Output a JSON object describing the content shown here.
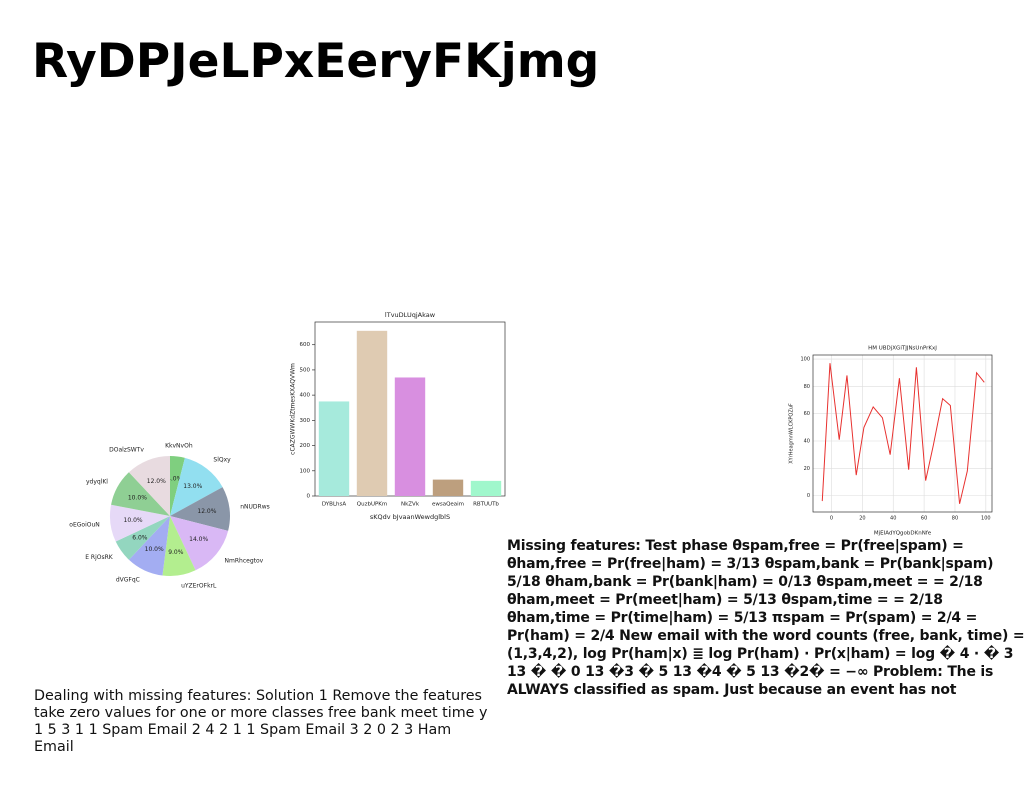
{
  "title": "RyDPJeLPxEeryFKjmg",
  "chart_data": [
    {
      "type": "pie",
      "categories": [
        "KkvNvOh",
        "SlQxy",
        "nNUDRws",
        "NmRhcegtov",
        "uYZErOFkrL",
        "dVGFqC",
        "E RjOsRK",
        "oEGoiOuN",
        "ydyqlKl",
        "DOalzSWTv"
      ],
      "values": [
        4,
        13,
        12,
        14,
        9,
        10,
        6,
        10,
        10,
        12
      ],
      "value_labels": [
        "4.0%",
        "13.0%",
        "12.0%",
        "14.0%",
        "9.0%",
        "10.0%",
        "6.0%",
        "10.0%",
        "10.0%",
        "12.0%"
      ],
      "colors": [
        "#7fcf7f",
        "#92dff0",
        "#8a96a8",
        "#d9b8f5",
        "#b3ee8f",
        "#a3adf2",
        "#93d6bf",
        "#e6d9f7",
        "#8fcf94",
        "#e8dbe0"
      ]
    },
    {
      "type": "bar",
      "title": "lTvuDLUqjAkaw",
      "x_label": "sKQdv bJvaanWewdglblS",
      "y_label": "cCAZGWWKdZtmesKXAQVWm",
      "categories": [
        "DYBLhsA",
        "QuzbUPKm",
        "NkZVk",
        "ewsaQeaim",
        "RBTUUTb"
      ],
      "values": [
        375,
        655,
        470,
        65,
        60
      ],
      "colors": [
        "#a6eadc",
        "#dfcbb2",
        "#d88fe0",
        "#bd9f7e",
        "#a0f7cc"
      ],
      "ylim": [
        0,
        690
      ],
      "yticks": [
        0,
        100,
        200,
        300,
        400,
        500,
        600
      ]
    },
    {
      "type": "line",
      "title": "HM UBDjXGiTJJNsUnPrKxJ",
      "x_label": "MjEIAdYQgobDKnNfe",
      "y_label": "XYrHeagmnWLCKPQZuF",
      "x": [
        -6,
        -1,
        5,
        10,
        16,
        21,
        27,
        33,
        38,
        44,
        50,
        55,
        61,
        66,
        72,
        77,
        83,
        88,
        94,
        99
      ],
      "values": [
        -4,
        97,
        41,
        88,
        15,
        50,
        65,
        57,
        30,
        86,
        19,
        94,
        11,
        37,
        71,
        66,
        -6,
        18,
        90,
        83
      ],
      "color": "#e8312f",
      "grid": true,
      "xlim": [
        -12,
        104
      ],
      "xticks": [
        0,
        20,
        40,
        60,
        80,
        100
      ],
      "ylim": [
        -12,
        103
      ],
      "yticks": [
        0,
        20,
        40,
        60,
        80,
        100
      ]
    }
  ],
  "left_text": "Dealing with missing features: Solution 1 Remove the features take zero values for one or more classes free bank meet time y 1 5 3 1 1 Spam Email 2 4 2 1 1 Spam Email 3 2 0 2 3 Ham Email",
  "right_text": "Missing features: Test phase θspam,free = Pr(free|spam) = θham,free = Pr(free|ham) = 3/13 θspam,bank = Pr(bank|spam) 5/18 θham,bank = Pr(bank|ham) = 0/13 θspam,meet = = 2/18 θham,meet = Pr(meet|ham) = 5/13 θspam,time = = 2/18 θham,time = Pr(time|ham) = 5/13 πspam = Pr(spam) = 2/4 = Pr(ham) = 2/4 New email with the word counts (free, bank, time) = (1,3,4,2), log Pr(ham|x) ≣ log Pr(ham) · Pr(x|ham) = log � 4 · � 3 13 � � 0 13 �3 � 5 13 �4 � 5 13 �2� = −∞ Problem: The is ALWAYS classified as spam. Just because an event has not"
}
